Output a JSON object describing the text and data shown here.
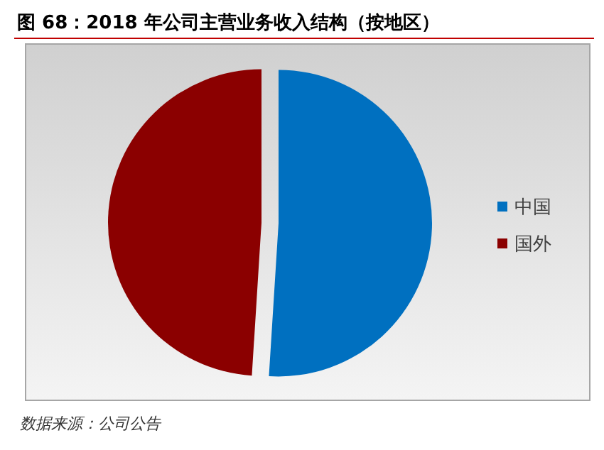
{
  "chart_data": {
    "type": "pie",
    "title": "图 68：2018 年公司主营业务收入结构（按地区）",
    "categories": [
      "中国",
      "国外"
    ],
    "values": [
      51,
      49
    ],
    "colors": [
      "#0070c0",
      "#8b0000"
    ],
    "legend": "right",
    "annotations": [
      "数据来源：公司公告"
    ]
  }
}
